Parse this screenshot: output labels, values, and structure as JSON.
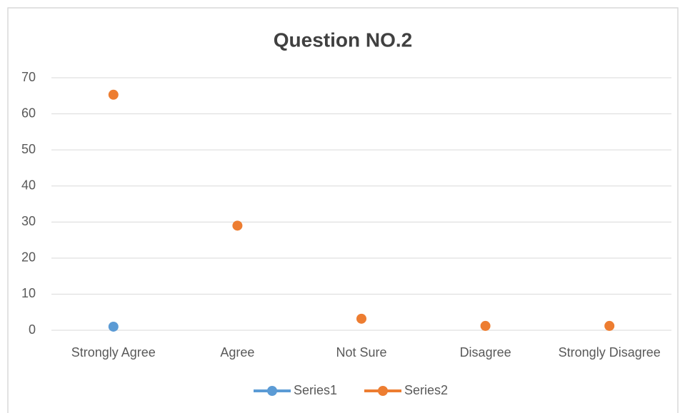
{
  "chart_data": {
    "type": "line",
    "title": "Question NO.2",
    "categories": [
      "Strongly Agree",
      "Agree",
      "Not Sure",
      "Disagree",
      "Strongly Disagree"
    ],
    "series": [
      {
        "name": "Series1",
        "color": "#5b9bd5",
        "values": [
          1,
          null,
          null,
          null,
          null
        ]
      },
      {
        "name": "Series2",
        "color": "#ed7d31",
        "values": [
          65.3,
          29,
          3.2,
          1.2,
          1.2
        ]
      }
    ],
    "ylim": [
      0,
      70
    ],
    "yticks": [
      0,
      10,
      20,
      30,
      40,
      50,
      60,
      70
    ],
    "grid": true,
    "legend": "bottom"
  }
}
